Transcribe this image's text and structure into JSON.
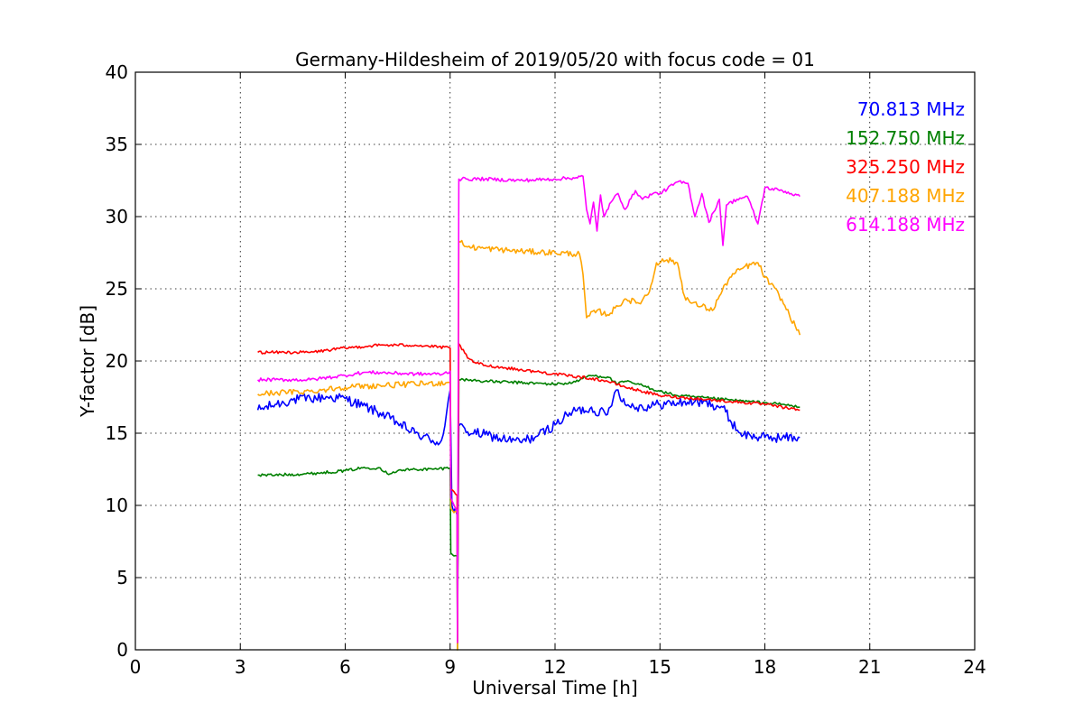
{
  "chart_data": {
    "type": "line",
    "title": "Germany-Hildesheim of 2019/05/20 with focus code = 01",
    "xlabel": "Universal Time [h]",
    "ylabel": "Y-factor [dB]",
    "xlim": [
      0,
      24
    ],
    "ylim": [
      0,
      40
    ],
    "xticks": [
      0,
      3,
      6,
      9,
      12,
      15,
      18,
      21,
      24
    ],
    "yticks": [
      0,
      5,
      10,
      15,
      20,
      25,
      30,
      35,
      40
    ],
    "grid": true,
    "legend_position": "top-right",
    "series": [
      {
        "name": "70.813 MHz",
        "color": "#0000ff",
        "noise": 0.35,
        "x": [
          3.5,
          4.0,
          4.5,
          5.0,
          5.5,
          6.0,
          6.5,
          7.0,
          7.5,
          8.0,
          8.5,
          8.7,
          8.85,
          9.0,
          9.05,
          9.2,
          9.21,
          9.25,
          9.5,
          10.0,
          10.5,
          11.0,
          11.5,
          12.0,
          12.5,
          13.0,
          13.5,
          13.7,
          13.8,
          14.0,
          14.5,
          15.0,
          15.5,
          16.0,
          16.5,
          16.8,
          17.0,
          17.3,
          17.6,
          18.0,
          18.5,
          19.0
        ],
        "y": [
          16.6,
          17.0,
          17.3,
          17.4,
          17.5,
          17.4,
          16.9,
          16.4,
          15.7,
          15.0,
          14.5,
          14.3,
          15.5,
          18.0,
          10.0,
          9.3,
          3.0,
          15.5,
          15.1,
          14.9,
          14.6,
          14.4,
          14.8,
          15.6,
          16.5,
          16.7,
          16.3,
          17.8,
          18.0,
          17.0,
          16.8,
          17.0,
          17.1,
          17.2,
          17.0,
          16.8,
          15.9,
          15.0,
          14.8,
          14.7,
          14.7,
          14.7
        ]
      },
      {
        "name": "152.750 MHz",
        "color": "#008000",
        "noise": 0.1,
        "x": [
          3.5,
          4.0,
          5.0,
          6.0,
          6.5,
          7.0,
          7.2,
          7.5,
          8.0,
          8.5,
          9.0,
          9.02,
          9.2,
          9.21,
          9.25,
          9.5,
          10.0,
          11.0,
          12.0,
          12.5,
          13.0,
          13.5,
          13.8,
          14.0,
          14.5,
          15.0,
          15.5,
          16.0,
          16.5,
          17.0,
          17.5,
          18.0,
          18.5,
          19.0
        ],
        "y": [
          12.1,
          12.1,
          12.2,
          12.4,
          12.6,
          12.6,
          12.2,
          12.4,
          12.5,
          12.5,
          12.6,
          6.7,
          6.5,
          0.0,
          18.7,
          18.7,
          18.6,
          18.5,
          18.4,
          18.5,
          19.0,
          18.9,
          18.4,
          18.6,
          18.3,
          17.9,
          17.6,
          17.5,
          17.4,
          17.3,
          17.2,
          17.1,
          17.0,
          16.8
        ]
      },
      {
        "name": "325.250 MHz",
        "color": "#ff0000",
        "noise": 0.1,
        "x": [
          3.5,
          4.0,
          5.0,
          6.0,
          7.0,
          8.0,
          9.0,
          9.02,
          9.2,
          9.21,
          9.25,
          9.5,
          9.7,
          10.0,
          11.0,
          12.0,
          13.0,
          13.5,
          14.0,
          15.0,
          16.0,
          17.0,
          18.0,
          19.0
        ],
        "y": [
          20.6,
          20.6,
          20.6,
          20.9,
          21.1,
          21.1,
          20.9,
          11.1,
          10.7,
          0.5,
          21.2,
          20.2,
          19.9,
          19.7,
          19.4,
          19.1,
          18.8,
          18.6,
          18.2,
          17.6,
          17.4,
          17.2,
          17.0,
          16.6
        ]
      },
      {
        "name": "407.188 MHz",
        "color": "#ffa500",
        "noise": 0.2,
        "x": [
          3.5,
          4.0,
          5.0,
          6.0,
          7.0,
          8.0,
          9.0,
          9.02,
          9.2,
          9.21,
          9.25,
          9.5,
          10.0,
          11.0,
          12.0,
          12.7,
          12.8,
          12.9,
          13.2,
          13.5,
          13.8,
          14.0,
          14.4,
          14.7,
          14.9,
          15.2,
          15.5,
          15.7,
          15.9,
          16.2,
          16.5,
          16.7,
          17.0,
          17.4,
          17.8,
          18.0,
          18.4,
          18.7,
          19.0
        ],
        "y": [
          17.7,
          17.8,
          17.9,
          18.2,
          18.3,
          18.4,
          18.5,
          9.8,
          9.5,
          0.0,
          28.3,
          27.9,
          27.8,
          27.6,
          27.5,
          27.4,
          26.0,
          23.0,
          23.5,
          23.2,
          23.8,
          24.3,
          24.0,
          24.8,
          26.8,
          27.0,
          26.8,
          24.5,
          24.0,
          23.8,
          23.5,
          24.5,
          25.8,
          26.5,
          26.8,
          25.8,
          24.6,
          23.2,
          21.8
        ]
      },
      {
        "name": "614.188 MHz",
        "color": "#ff00ff",
        "noise": 0.12,
        "x": [
          3.5,
          4.0,
          5.0,
          6.0,
          6.5,
          7.0,
          8.0,
          8.8,
          9.0,
          9.02,
          9.2,
          9.21,
          9.25,
          9.5,
          10.0,
          11.0,
          12.0,
          12.6,
          12.8,
          12.9,
          13.0,
          13.1,
          13.2,
          13.3,
          13.4,
          13.6,
          13.8,
          14.0,
          14.3,
          14.5,
          14.8,
          15.0,
          15.5,
          15.8,
          16.0,
          16.2,
          16.4,
          16.7,
          16.8,
          16.9,
          17.2,
          17.5,
          17.8,
          18.0,
          18.5,
          19.0
        ],
        "y": [
          18.7,
          18.7,
          18.7,
          19.0,
          19.2,
          19.2,
          19.1,
          19.1,
          19.3,
          10.5,
          9.6,
          0.5,
          32.6,
          32.6,
          32.6,
          32.5,
          32.6,
          32.7,
          32.8,
          30.5,
          29.5,
          31.0,
          29.0,
          31.5,
          30.0,
          31.0,
          31.6,
          30.5,
          31.8,
          31.2,
          31.6,
          31.6,
          32.4,
          32.3,
          30.0,
          31.6,
          29.6,
          31.2,
          28.0,
          30.8,
          31.2,
          31.4,
          29.5,
          32.0,
          31.8,
          31.4
        ]
      }
    ]
  }
}
